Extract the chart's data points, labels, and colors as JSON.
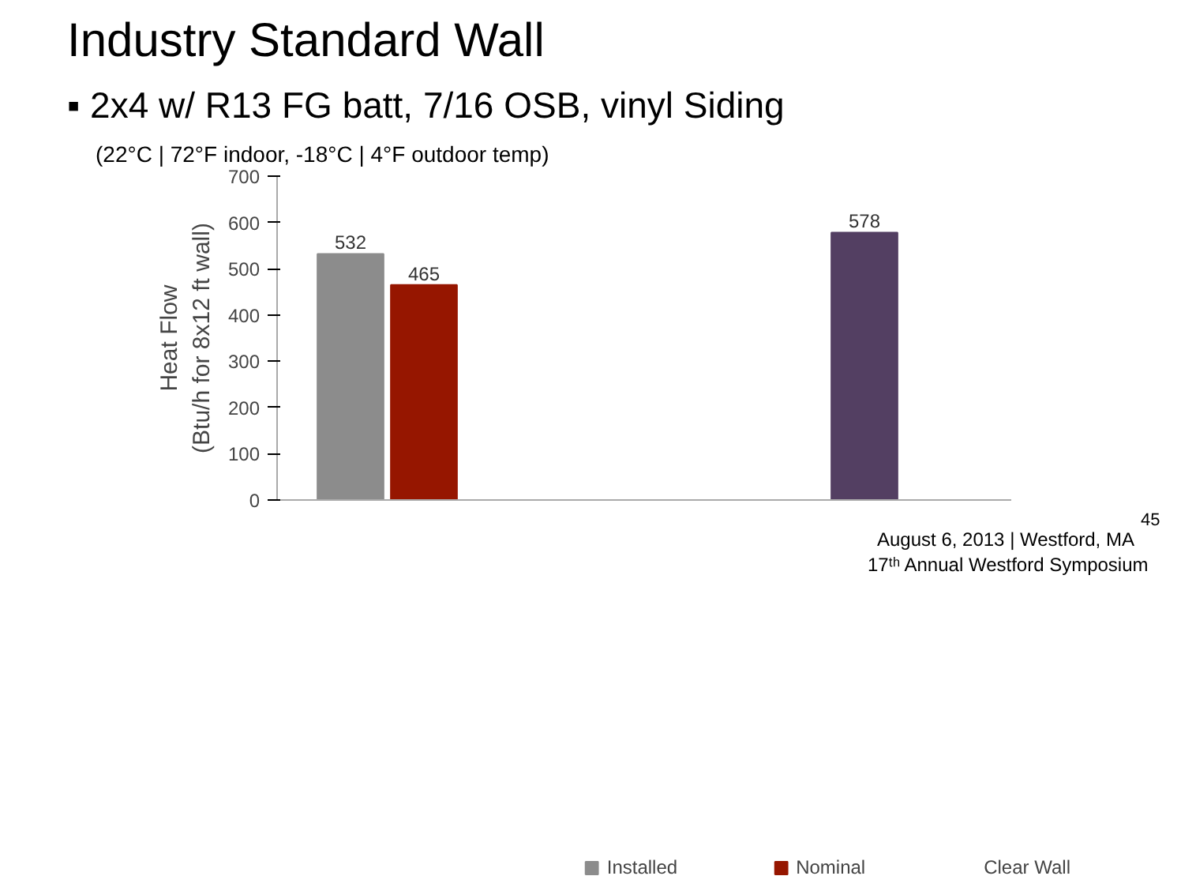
{
  "chart_data": {
    "type": "bar",
    "title": "Industry Standard Wall",
    "subtitle": "▪ 2x4 w/ R13 FG batt, 7/16 OSB, vinyl Siding",
    "annotations": [
      "(22°C | 72°F indoor,  -18°C | 4°F outdoor temp)",
      "17ᵗʰ Annual Westford Symposium",
      "August 6, 2013 | Westford, MA",
      "45"
    ],
    "ylabel": "Heat Flow\n(Btu/h for 8x12 ft wall)",
    "categories": [
      null,
      null
    ],
    "series": [
      {
        "name": "Installed",
        "color": "#8c8c8c",
        "values": [
          532,
          null
        ]
      },
      {
        "name": "Nominal",
        "color": "#961600",
        "values": [
          465,
          null
        ]
      },
      {
        "color": "#533f62",
        "values": [
          null,
          578
        ]
      },
      {
        "name": "Clear Wall",
        "color": "#4f6228",
        "values": [
          null,
          null
        ]
      }
    ],
    "ylim": [
      0,
      700
    ],
    "yticks": [
      0,
      100,
      200,
      300,
      400,
      500,
      600,
      700
    ],
    "data_labels": true,
    "grid": false,
    "legend": "bottom"
  }
}
